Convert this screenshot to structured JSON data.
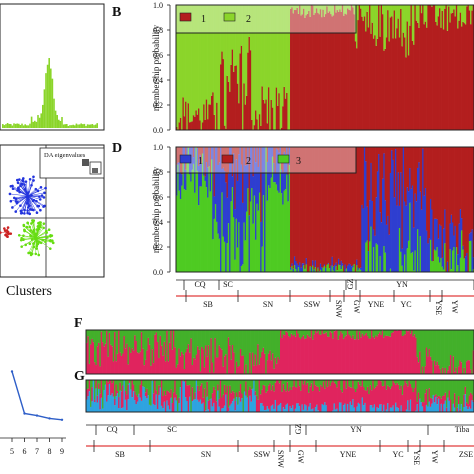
{
  "colors": {
    "K2_group1": "#b31e1e",
    "K2_group2": "#8bd52a",
    "K3_group1": "#2e3ed0",
    "K3_group2": "#b31e1e",
    "K3_group3": "#4ecb22",
    "FG_red": "#e0245e",
    "FG_green": "#43b02a",
    "FG_blue": "#2ea3e0",
    "scatter_blue": "#2233dd",
    "scatter_green": "#66dd11",
    "scatter_red": "#cc2222",
    "hist_green": "#8bd52a",
    "line_blue": "#2e5ec8",
    "region_underline": "#e03c3c"
  },
  "panels": {
    "B": {
      "label": "B"
    },
    "D": {
      "label": "D"
    },
    "F": {
      "label": "F"
    },
    "G": {
      "label": "G"
    },
    "scatter": {
      "legend_text": "DA eigenvalues",
      "xlabel": "Clusters"
    },
    "line_panel": {
      "ticks": [
        "5",
        "6",
        "7",
        "8",
        "9"
      ]
    }
  },
  "chart_data": [
    {
      "type": "bar",
      "panel": "B",
      "kind": "stacked membership probability",
      "ylabel": "membership probability",
      "ylim": [
        0,
        1.0
      ],
      "yticks": [
        "0.0",
        "0.2",
        "0.4",
        "0.6",
        "0.8",
        "1.0"
      ],
      "legend": [
        "1",
        "2"
      ],
      "legend_placement": "top-left",
      "grid": false
    },
    {
      "type": "bar",
      "panel": "D",
      "kind": "stacked membership probability",
      "ylabel": "membership probability",
      "ylim": [
        0,
        1.0
      ],
      "yticks": [
        "0.0",
        "0.2",
        "0.4",
        "0.6",
        "0.8",
        "1.0"
      ],
      "legend": [
        "1",
        "2",
        "3"
      ],
      "legend_placement": "top-left",
      "grid": false,
      "regions_top": [
        "CQ",
        "SC",
        "GZ",
        "YN"
      ],
      "regions_bottom": [
        "SB",
        "SN",
        "SSW",
        "SNW",
        "GW",
        "YNE",
        "YC",
        "YSE",
        "YW"
      ]
    },
    {
      "type": "bar",
      "panel": "F",
      "kind": "stacked membership probability",
      "grid": false
    },
    {
      "type": "bar",
      "panel": "G",
      "kind": "stacked membership probability",
      "grid": false,
      "regions_top": [
        "CQ",
        "SC",
        "GZ",
        "YN",
        "Tiba"
      ],
      "regions_bottom": [
        "SB",
        "SN",
        "SSW",
        "SNW",
        "GW",
        "YNE",
        "YC",
        "YSE",
        "YW",
        "ZSE"
      ]
    },
    {
      "type": "line",
      "panel": "line",
      "x": [
        5,
        6,
        7,
        8,
        9
      ],
      "y": [
        0.95,
        0.35,
        0.32,
        0.28,
        0.26
      ],
      "xticks": [
        "5",
        "6",
        "7",
        "8",
        "9"
      ]
    },
    {
      "type": "scatter",
      "panel": "scatter",
      "xlabel": "Clusters",
      "series": [
        {
          "color": "scatter_blue"
        },
        {
          "color": "scatter_green"
        },
        {
          "color": "scatter_red"
        }
      ]
    }
  ]
}
